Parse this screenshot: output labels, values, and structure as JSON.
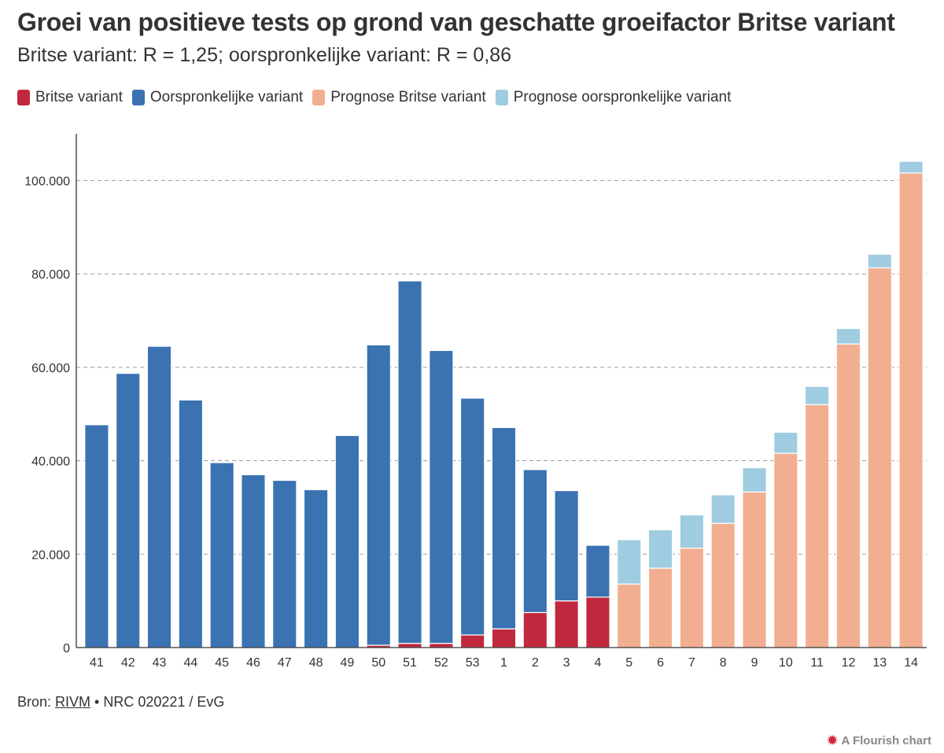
{
  "title": "Groei van positieve tests op grond van geschatte groeifactor Britse variant",
  "subtitle": "Britse variant: R = 1,25; oorspronkelijke variant: R = 0,86",
  "legend": [
    {
      "label": "Britse variant",
      "color": "#c0283e"
    },
    {
      "label": "Oorspronkelijke variant",
      "color": "#3b72b2"
    },
    {
      "label": "Prognose Britse variant",
      "color": "#f2ae90"
    },
    {
      "label": "Prognose oorspronkelijke variant",
      "color": "#9fcce0"
    }
  ],
  "footer": {
    "source_prefix": "Bron: ",
    "source_link": "RIVM",
    "source_suffix": " • NRC 020221 / EvG",
    "flourish_icon": "flourish-burst-icon",
    "flourish_label": "A Flourish chart"
  },
  "chart_data": {
    "type": "bar",
    "stacked": true,
    "categories": [
      "41",
      "42",
      "43",
      "44",
      "45",
      "46",
      "47",
      "48",
      "49",
      "50",
      "51",
      "52",
      "53",
      "1",
      "2",
      "3",
      "4",
      "5",
      "6",
      "7",
      "8",
      "9",
      "10",
      "11",
      "12",
      "13",
      "14"
    ],
    "series": [
      {
        "name": "Britse variant",
        "color": "#c0283e",
        "values": [
          0,
          0,
          0,
          0,
          0,
          0,
          0,
          0,
          0,
          500,
          900,
          900,
          2700,
          4000,
          7500,
          10000,
          10800,
          0,
          0,
          0,
          0,
          0,
          0,
          0,
          0,
          0,
          0
        ]
      },
      {
        "name": "Oorspronkelijke variant",
        "color": "#3b72b2",
        "values": [
          47700,
          58700,
          64500,
          53000,
          39600,
          37000,
          35800,
          33800,
          45400,
          64300,
          77600,
          62700,
          50700,
          43100,
          30600,
          23600,
          11100,
          0,
          0,
          0,
          0,
          0,
          0,
          0,
          0,
          0,
          0
        ]
      },
      {
        "name": "Prognose Britse variant",
        "color": "#f2ae90",
        "values": [
          0,
          0,
          0,
          0,
          0,
          0,
          0,
          0,
          0,
          0,
          0,
          0,
          0,
          0,
          0,
          0,
          0,
          13600,
          17000,
          21300,
          26600,
          33300,
          41600,
          52000,
          65000,
          81300,
          101600
        ]
      },
      {
        "name": "Prognose oorspronkelijke variant",
        "color": "#9fcce0",
        "values": [
          0,
          0,
          0,
          0,
          0,
          0,
          0,
          0,
          0,
          0,
          0,
          0,
          0,
          0,
          0,
          0,
          0,
          9500,
          8200,
          7100,
          6100,
          5200,
          4500,
          3900,
          3300,
          2900,
          2500
        ]
      }
    ],
    "ylim": [
      0,
      110000
    ],
    "yticks": [
      0,
      20000,
      40000,
      60000,
      80000,
      100000
    ],
    "ytick_labels": [
      "0",
      "20.000",
      "40.000",
      "60.000",
      "80.000",
      "100.000"
    ],
    "grid": true
  }
}
